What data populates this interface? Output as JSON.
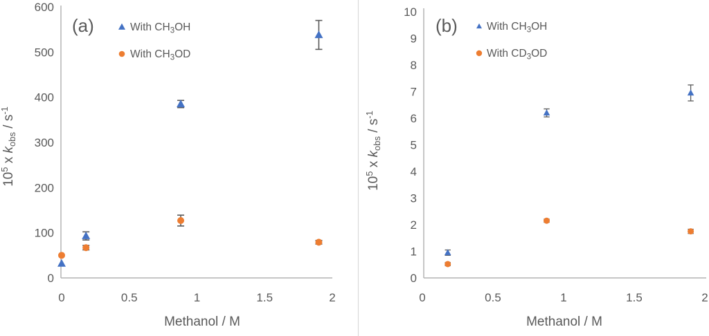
{
  "figure": {
    "background": "#ffffff",
    "divider_color": "#d9d9d9"
  },
  "chart_data": [
    {
      "type": "scatter",
      "panel_id": "a",
      "panel_label": "(a)",
      "xlabel": "Methanol / M",
      "ylabel": "10^5 x k_obs / s^-1",
      "ylabel_parts": {
        "base": "10",
        "base_sup": "5",
        "times": " x ",
        "symbol": "k",
        "symbol_sub": "obs",
        "unit": " / s",
        "unit_sup": "-1"
      },
      "xlim": [
        0,
        2
      ],
      "ylim": [
        0,
        600
      ],
      "xticks": [
        "0",
        "0.5",
        "1",
        "1.5",
        "2"
      ],
      "xtick_values": [
        0,
        0.5,
        1,
        1.5,
        2
      ],
      "yticks": [
        0,
        100,
        200,
        300,
        400,
        500,
        600
      ],
      "grid": false,
      "legend_position": "top-left-inside",
      "axis_color": "#b3b3b3",
      "text_color": "#595959",
      "error_bar_color": "#595959",
      "series": [
        {
          "name": "With CH₃OH",
          "label_parts": {
            "pre": "With CH",
            "sub": "3",
            "post": "OH"
          },
          "color": "#4472C4",
          "marker": "triangle",
          "x": [
            0,
            0.18,
            0.88,
            1.9
          ],
          "y": [
            32,
            93,
            385,
            538
          ],
          "yerr": [
            0,
            9,
            8,
            32
          ]
        },
        {
          "name": "With CH₃OD",
          "label_parts": {
            "pre": "With CH",
            "sub": "3",
            "post": "OD"
          },
          "color": "#ED7D31",
          "marker": "circle",
          "x": [
            0,
            0.18,
            0.88,
            1.9
          ],
          "y": [
            50,
            67,
            127,
            79
          ],
          "yerr": [
            0,
            5,
            12,
            4
          ]
        }
      ]
    },
    {
      "type": "scatter",
      "panel_id": "b",
      "panel_label": "(b)",
      "xlabel": "Methanol / M",
      "ylabel": "10^5 x k_obs / s^-1",
      "ylabel_parts": {
        "base": "10",
        "base_sup": "5",
        "times": " x ",
        "symbol": "k",
        "symbol_sub": "obs",
        "unit": " / s",
        "unit_sup": "-1"
      },
      "xlim": [
        0,
        2
      ],
      "ylim": [
        0,
        10
      ],
      "xticks": [
        "0",
        "0.5",
        "1",
        "1.5",
        "2"
      ],
      "xtick_values": [
        0,
        0.5,
        1,
        1.5,
        2
      ],
      "yticks": [
        0,
        1,
        2,
        3,
        4,
        5,
        6,
        7,
        8,
        9,
        10
      ],
      "grid": false,
      "legend_position": "top-left-inside",
      "axis_color": "#b3b3b3",
      "text_color": "#595959",
      "error_bar_color": "#595959",
      "series": [
        {
          "name": "With CH₃OH",
          "label_parts": {
            "pre": "With CH",
            "sub": "3",
            "post": "OH"
          },
          "color": "#4472C4",
          "marker": "triangle",
          "x": [
            0.18,
            0.88,
            1.9
          ],
          "y": [
            0.95,
            6.2,
            6.95
          ],
          "yerr": [
            0.1,
            0.15,
            0.3
          ]
        },
        {
          "name": "With CD₃OD",
          "label_parts": {
            "pre": "With CD",
            "sub": "3",
            "post": "OD"
          },
          "color": "#ED7D31",
          "marker": "circle",
          "x": [
            0.18,
            0.88,
            1.9
          ],
          "y": [
            0.52,
            2.15,
            1.75
          ],
          "yerr": [
            0.06,
            0.06,
            0.08
          ]
        }
      ]
    }
  ]
}
